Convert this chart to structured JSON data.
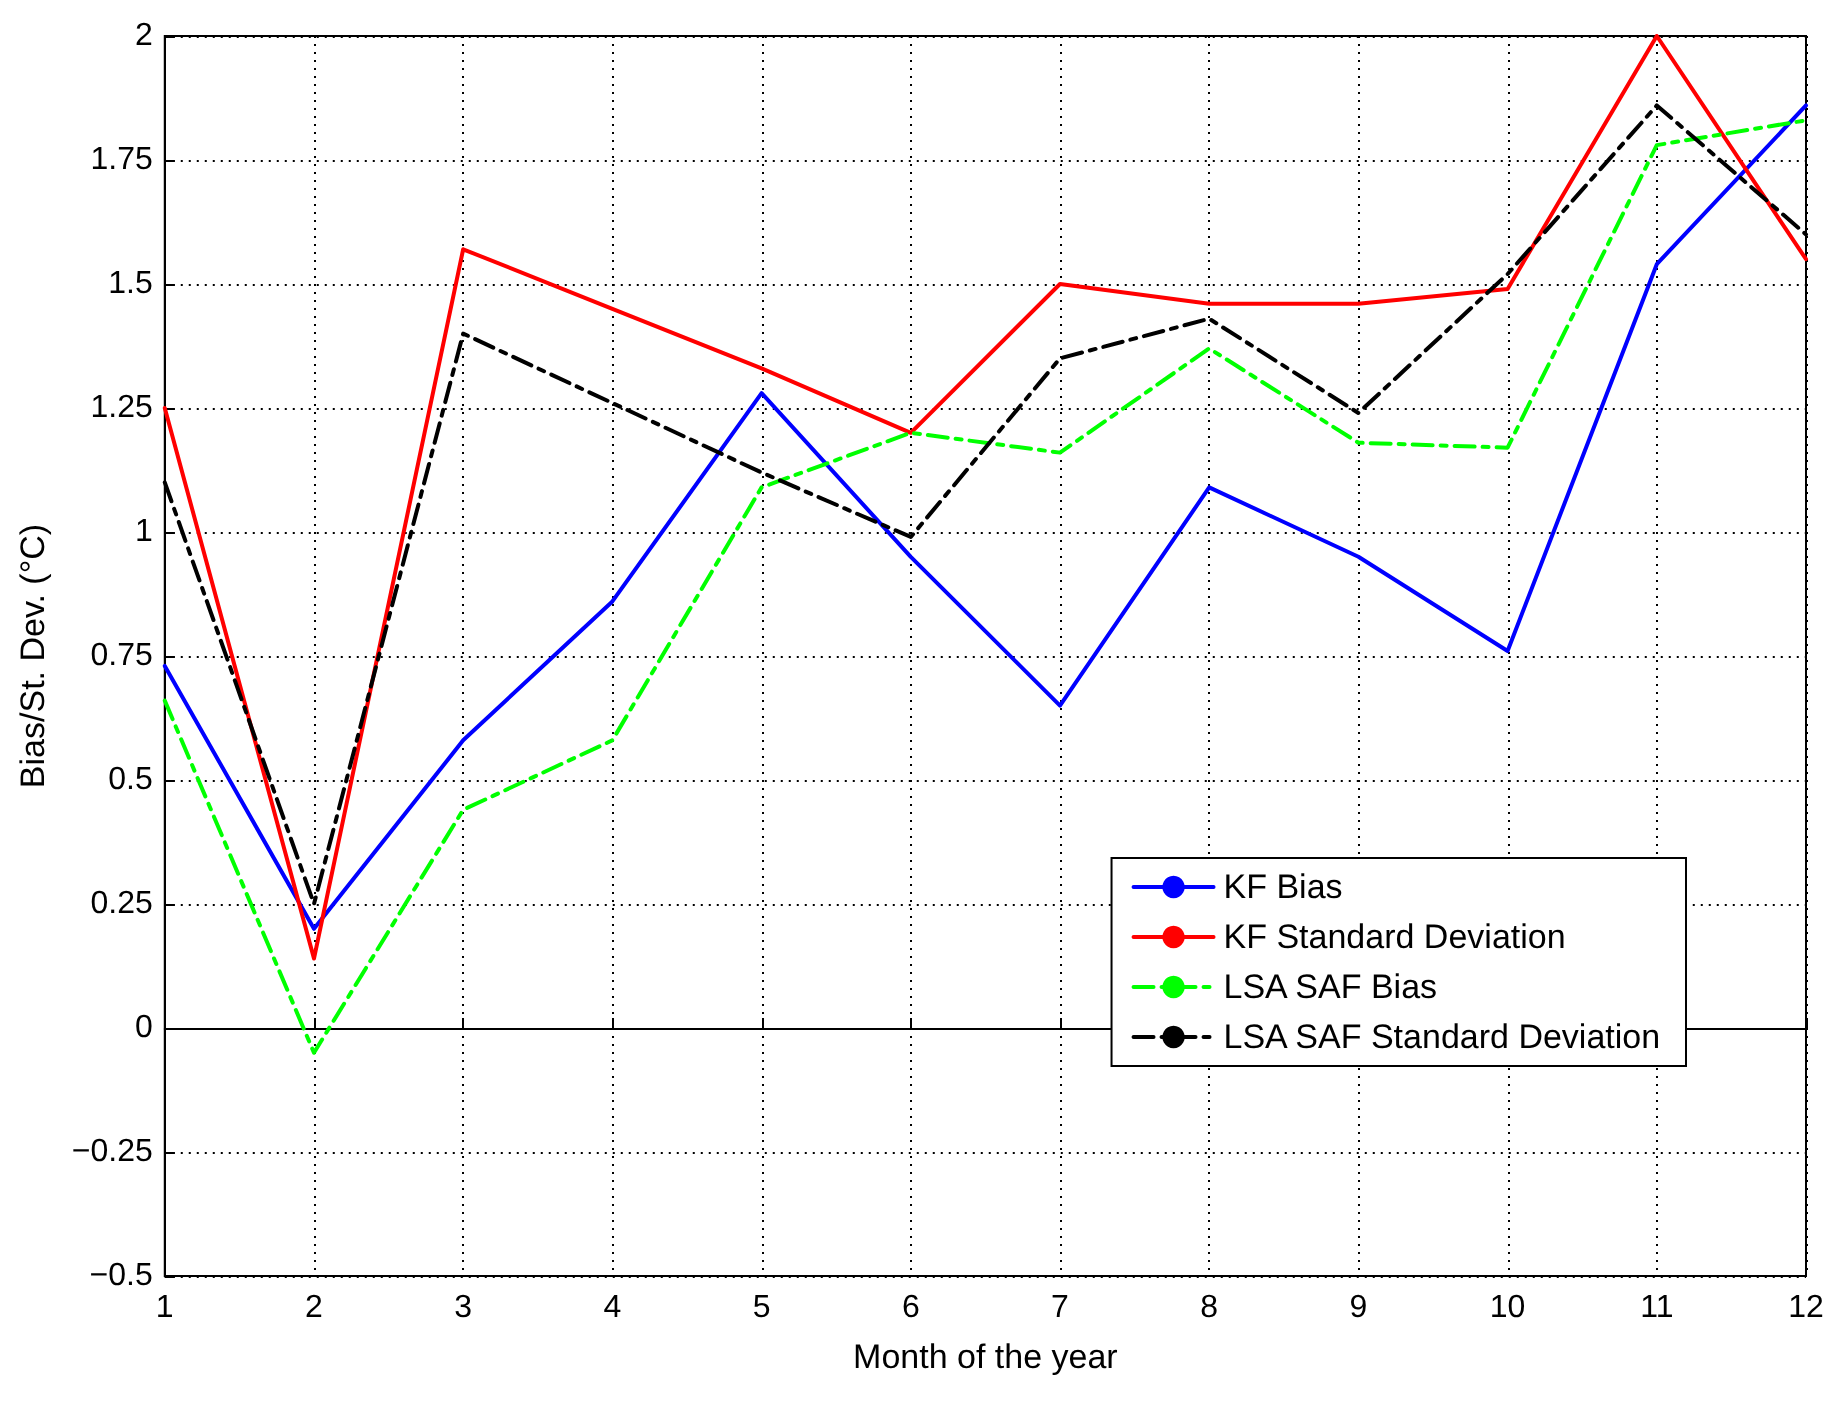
{
  "chart_data": {
    "type": "line",
    "xlabel": "Month of the year",
    "ylabel": "Bias/St. Dev. (°C)",
    "x": [
      1,
      2,
      3,
      4,
      5,
      6,
      7,
      8,
      9,
      10,
      11,
      12
    ],
    "xlim": [
      1,
      12
    ],
    "xticks": [
      1,
      2,
      3,
      4,
      5,
      6,
      7,
      8,
      9,
      10,
      11,
      12
    ],
    "ylim": [
      -0.5,
      2
    ],
    "yticks": [
      -0.5,
      -0.25,
      0,
      0.25,
      0.5,
      0.75,
      1,
      1.25,
      1.5,
      1.75,
      2
    ],
    "grid": true,
    "legend": "bottom right",
    "marker": "none",
    "series": [
      {
        "name": "KF Bias",
        "color": "#0000ff",
        "line_style": "solid",
        "values": [
          0.73,
          0.2,
          0.58,
          0.86,
          1.28,
          0.95,
          0.65,
          1.09,
          0.95,
          0.76,
          1.54,
          1.86
        ]
      },
      {
        "name": "KF Standard Deviation",
        "color": "#ff0000",
        "line_style": "solid",
        "values": [
          1.25,
          0.14,
          1.57,
          1.45,
          1.33,
          1.2,
          1.5,
          1.46,
          1.46,
          1.49,
          2.0,
          1.55
        ]
      },
      {
        "name": "LSA SAF Bias",
        "color": "#00ff00",
        "line_style": "dashed",
        "values": [
          0.66,
          -0.05,
          0.44,
          0.58,
          1.09,
          1.2,
          1.16,
          1.37,
          1.18,
          1.17,
          1.78,
          1.83
        ]
      },
      {
        "name": "LSA SAF Standard Deviation",
        "color": "#000000",
        "line_style": "dashed",
        "values": [
          1.1,
          0.25,
          1.4,
          1.26,
          1.12,
          0.99,
          1.35,
          1.43,
          1.24,
          1.52,
          1.86,
          1.6
        ]
      }
    ]
  }
}
